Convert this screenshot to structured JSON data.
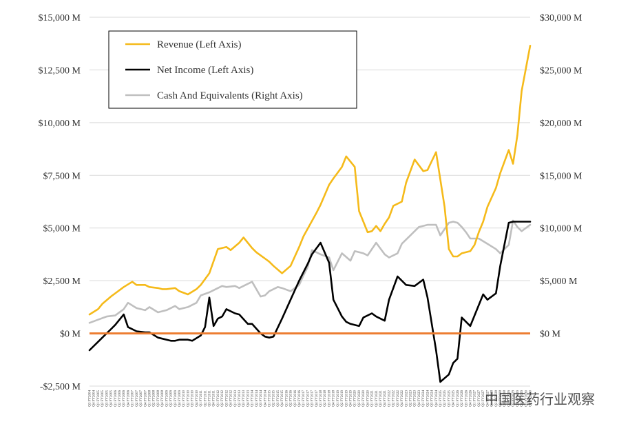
{
  "chart_data": {
    "type": "line",
    "title": "",
    "xlabel": "",
    "ylabel": "",
    "left_axis": {
      "ylim": [
        -2500,
        15000
      ],
      "tick_values": [
        -2500,
        0,
        2500,
        5000,
        7500,
        10000,
        12500,
        15000
      ],
      "tick_labels": [
        "-$2,500 M",
        "$0 M",
        "$2,500 M",
        "$5,000 M",
        "$7,500 M",
        "$10,000 M",
        "$12,500 M",
        "$15,000 M"
      ]
    },
    "right_axis": {
      "ylim": [
        -5000,
        30000
      ],
      "tick_values": [
        0,
        5000,
        10000,
        15000,
        20000,
        25000,
        30000
      ],
      "tick_labels": [
        "$0 M",
        "$5,000 M",
        "$10,000 M",
        "$15,000 M",
        "$20,000 M",
        "$25,000 M",
        "$30,000 M"
      ]
    },
    "grid": true,
    "legend_position": "top-left",
    "zero_line_color": "#ED7D31",
    "x": [
      1,
      2,
      3,
      4,
      5,
      6,
      7,
      8,
      9,
      10,
      11,
      12,
      13,
      14,
      15,
      16,
      17,
      18,
      19,
      20,
      21,
      22,
      23,
      24,
      25,
      26,
      27,
      28,
      29,
      30,
      31,
      32,
      33,
      34,
      35,
      36,
      37,
      38,
      39,
      40,
      41,
      42,
      43,
      44,
      45,
      46,
      47,
      48,
      49,
      50,
      51,
      52,
      53,
      54,
      55,
      56,
      57,
      58,
      59,
      60,
      61,
      62,
      63,
      64,
      65,
      66,
      67,
      68,
      69,
      70,
      71,
      72,
      73,
      74,
      75,
      76,
      77,
      78,
      79,
      80,
      81,
      82,
      83,
      84,
      85,
      86,
      87,
      88,
      89,
      90,
      91,
      92,
      93,
      94,
      95,
      96,
      97,
      98,
      99,
      100,
      101,
      102,
      103,
      104
    ],
    "x_tick_labels": [
      "Q3 FY2004",
      "Q4 FY2004",
      "Q1 FY2005",
      "Q2 FY2005",
      "Q3 FY2005",
      "Q4 FY2005",
      "Q1 FY2006",
      "Q2 FY2006",
      "Q3 FY2006",
      "Q4 FY2006",
      "Q1 FY2007",
      "Q2 FY2007",
      "Q3 FY2007",
      "Q4 FY2007",
      "Q1 FY2008",
      "Q2 FY2008",
      "Q3 FY2008",
      "Q4 FY2008",
      "Q1 FY2009",
      "Q2 FY2009",
      "Q3 FY2009",
      "Q4 FY2009",
      "Q1 FY2010",
      "Q2 FY2010",
      "Q3 FY2010",
      "Q4 FY2010",
      "Q1 FY2011",
      "Q2 FY2011",
      "Q3 FY2011",
      "Q4 FY2011",
      "Q1 FY2012",
      "Q2 FY2012",
      "Q3 FY2012",
      "Q4 FY2012",
      "Q1 FY2013",
      "Q2 FY2013",
      "Q3 FY2013",
      "Q4 FY2013",
      "Q1 FY2014",
      "Q2 FY2014",
      "Q3 FY2014",
      "Q4 FY2014",
      "Q1 FY2015",
      "Q2 FY2015",
      "Q3 FY2015",
      "Q4 FY2015",
      "Q1 FY2016",
      "Q2 FY2016",
      "Q3 FY2016",
      "Q4 FY2016",
      "Q1 FY2017",
      "Q2 FY2017",
      "Q3 FY2017",
      "Q4 FY2017",
      "Q1 FY2018",
      "Q2 FY2018",
      "Q3 FY2018",
      "Q4 FY2018",
      "Q1 FY2019",
      "Q2 FY2019",
      "Q3 FY2019",
      "Q4 FY2019",
      "Q1 FY2020",
      "Q2 FY2020",
      "Q3 FY2020",
      "Q4 FY2020",
      "Q1 FY2021",
      "Q2 FY2021",
      "Q3 FY2021",
      "Q4 FY2021",
      "Q1 FY2022",
      "Q2 FY2022",
      "Q3 FY2022",
      "Q4 FY2022",
      "Q1 FY2023",
      "Q2 FY2023",
      "Q3 FY2023",
      "Q4 FY2023",
      "Q1 FY2024",
      "Q2 FY2024",
      "Q3 FY2024",
      "Q4 FY2024",
      "Q1 FY2025",
      "Q2 FY2025",
      "Q3 FY2025",
      "Q4 FY2025",
      "Q1 FY2026",
      "Q2 FY2026",
      "Q3 FY2026",
      "Q4 FY2026",
      "Q1 FY2027",
      "Q2 FY2027",
      "Q3 FY2027",
      "Q4 FY2027",
      "Q1 FY2028",
      "Q2 FY2028",
      "Q3 FY2028",
      "Q4 FY2028",
      "Q1 FY2029",
      "Q2 FY2029",
      "Q3 FY2029",
      "Q4 FY2029",
      "Q1 FY2030",
      "Q2 FY2030"
    ],
    "series": [
      {
        "name": "Revenue (Left Axis)",
        "axis": "left",
        "color": "#F5BA1A",
        "x": [
          1,
          3,
          4,
          6,
          7,
          9,
          11,
          12,
          14,
          15,
          17,
          18,
          19,
          21,
          22,
          24,
          26,
          27,
          29,
          31,
          33,
          34,
          36,
          37,
          39,
          40,
          42,
          43,
          44,
          46,
          48,
          50,
          51,
          54,
          55,
          57,
          58,
          60,
          61,
          63,
          64,
          66,
          67,
          68,
          69,
          70,
          71,
          72,
          74,
          75,
          77,
          79,
          80,
          82,
          84,
          85,
          86,
          87,
          88,
          90,
          91,
          92,
          93,
          94,
          96,
          97,
          99,
          100,
          101,
          102,
          104
        ],
        "values": [
          900,
          1150,
          1400,
          1750,
          1900,
          2200,
          2450,
          2300,
          2300,
          2200,
          2150,
          2100,
          2100,
          2150,
          2000,
          1850,
          2100,
          2300,
          2850,
          4000,
          4100,
          3950,
          4300,
          4550,
          4050,
          3850,
          3550,
          3400,
          3200,
          2850,
          3200,
          4100,
          4600,
          5700,
          6100,
          7050,
          7350,
          7900,
          8400,
          7900,
          5800,
          4800,
          4850,
          5100,
          4850,
          5200,
          5500,
          6050,
          6250,
          7150,
          8250,
          7700,
          7750,
          8600,
          6000,
          4000,
          3650,
          3650,
          3800,
          3900,
          4200,
          4800,
          5300,
          6000,
          6900,
          7600,
          8700,
          8050,
          9400,
          11500,
          13650
        ]
      },
      {
        "name": "Net Income (Left Axis)",
        "axis": "left",
        "color": "#000000",
        "x": [
          1,
          3,
          4,
          6,
          7,
          9,
          10,
          12,
          14,
          15,
          17,
          18,
          20,
          21,
          22,
          24,
          25,
          27,
          28,
          29,
          30,
          31,
          32,
          33,
          35,
          36,
          38,
          39,
          41,
          42,
          43,
          44,
          46,
          48,
          50,
          52,
          53,
          55,
          57,
          58,
          60,
          61,
          62,
          64,
          65,
          67,
          68,
          70,
          71,
          73,
          75,
          77,
          79,
          80,
          82,
          83,
          85,
          86,
          87,
          88,
          90,
          91,
          93,
          94,
          96,
          97,
          99,
          100,
          101,
          102,
          103,
          104
        ],
        "values": [
          -800,
          -400,
          -200,
          200,
          400,
          900,
          300,
          100,
          50,
          50,
          -200,
          -250,
          -350,
          -350,
          -300,
          -300,
          -350,
          -100,
          300,
          1700,
          350,
          700,
          800,
          1150,
          950,
          900,
          450,
          450,
          0,
          -150,
          -200,
          -150,
          700,
          1600,
          2500,
          3300,
          3750,
          4300,
          3350,
          1600,
          800,
          550,
          450,
          350,
          750,
          950,
          800,
          600,
          1600,
          2700,
          2300,
          2250,
          2550,
          1700,
          -800,
          -2300,
          -1950,
          -1400,
          -1200,
          750,
          350,
          850,
          1850,
          1600,
          1900,
          3200,
          5250,
          5300,
          5300,
          5300,
          5300,
          5300
        ]
      },
      {
        "name": "Cash And Equivalents (Right Axis)",
        "axis": "right",
        "color": "#BFBFBF",
        "x": [
          1,
          3,
          5,
          7,
          9,
          10,
          12,
          14,
          15,
          17,
          19,
          21,
          22,
          24,
          26,
          27,
          29,
          30,
          32,
          33,
          35,
          36,
          38,
          39,
          41,
          42,
          43,
          45,
          46,
          48,
          50,
          51,
          52,
          53,
          55,
          57,
          58,
          60,
          62,
          63,
          65,
          66,
          68,
          70,
          71,
          73,
          74,
          76,
          78,
          80,
          82,
          83,
          85,
          86,
          87,
          88,
          89,
          90,
          92,
          94,
          96,
          97,
          99,
          100,
          101,
          102,
          103,
          104
        ],
        "values": [
          1000,
          1300,
          1600,
          1700,
          2300,
          2900,
          2400,
          2200,
          2500,
          2000,
          2200,
          2600,
          2300,
          2500,
          2900,
          3600,
          3900,
          4100,
          4500,
          4400,
          4500,
          4300,
          4700,
          4900,
          3500,
          3600,
          4000,
          4400,
          4300,
          4000,
          4600,
          5500,
          6300,
          7900,
          7500,
          7200,
          6000,
          7600,
          6900,
          7800,
          7600,
          7400,
          8600,
          7500,
          7200,
          7600,
          8500,
          9300,
          10100,
          10300,
          10300,
          9300,
          10500,
          10600,
          10500,
          10100,
          9600,
          9000,
          9000,
          8500,
          8000,
          7600,
          8400,
          10700,
          10100,
          9700,
          10000,
          10300
        ]
      }
    ],
    "watermark": "中国医药行业观察"
  }
}
